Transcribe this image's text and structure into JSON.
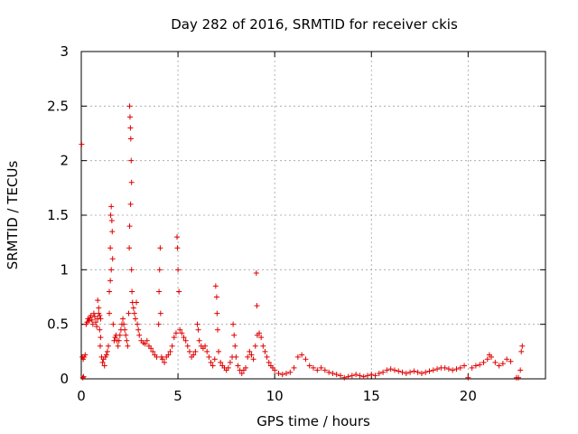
{
  "chart_data": {
    "type": "scatter",
    "title": "Day 282 of 2016, SRMTID for receiver ckis",
    "xlabel": "GPS time / hours",
    "ylabel": "SRMTID / TECUs",
    "xlim": [
      0,
      24
    ],
    "ylim": [
      0,
      3
    ],
    "x_ticks": [
      0,
      5,
      10,
      15,
      20
    ],
    "x_tick_labels": [
      "0",
      "5",
      "10",
      "15",
      "20"
    ],
    "y_ticks": [
      0,
      0.5,
      1,
      1.5,
      2,
      2.5,
      3
    ],
    "y_tick_labels": [
      "0",
      "0.5",
      "1",
      "1.5",
      "2",
      "2.5",
      "3"
    ],
    "grid": true,
    "marker": "plus",
    "color": "#e00000",
    "series": [
      {
        "name": "SRMTID",
        "points": [
          [
            0.02,
            2.15
          ],
          [
            0.05,
            0.2
          ],
          [
            0.1,
            0.18
          ],
          [
            0.15,
            0.2
          ],
          [
            0.2,
            0.22
          ],
          [
            0.08,
            0.01
          ],
          [
            0.12,
            0.02
          ],
          [
            0.25,
            0.5
          ],
          [
            0.3,
            0.52
          ],
          [
            0.35,
            0.55
          ],
          [
            0.4,
            0.53
          ],
          [
            0.45,
            0.56
          ],
          [
            0.5,
            0.58
          ],
          [
            0.55,
            0.54
          ],
          [
            0.6,
            0.5
          ],
          [
            0.65,
            0.6
          ],
          [
            0.7,
            0.57
          ],
          [
            0.75,
            0.52
          ],
          [
            0.8,
            0.48
          ],
          [
            0.85,
            0.55
          ],
          [
            0.9,
            0.6
          ],
          [
            0.95,
            0.58
          ],
          [
            1.0,
            0.55
          ],
          [
            0.85,
            0.72
          ],
          [
            0.9,
            0.65
          ],
          [
            0.95,
            0.45
          ],
          [
            1.0,
            0.38
          ],
          [
            0.98,
            0.3
          ],
          [
            1.05,
            0.2
          ],
          [
            1.1,
            0.15
          ],
          [
            1.15,
            0.18
          ],
          [
            1.2,
            0.12
          ],
          [
            1.25,
            0.2
          ],
          [
            1.3,
            0.22
          ],
          [
            1.35,
            0.25
          ],
          [
            1.4,
            0.3
          ],
          [
            1.45,
            0.8
          ],
          [
            1.5,
            1.2
          ],
          [
            1.52,
            1.5
          ],
          [
            1.55,
            1.58
          ],
          [
            1.58,
            1.45
          ],
          [
            1.6,
            1.35
          ],
          [
            1.62,
            1.1
          ],
          [
            1.55,
            1.0
          ],
          [
            1.5,
            0.9
          ],
          [
            1.45,
            0.6
          ],
          [
            1.65,
            0.5
          ],
          [
            1.7,
            0.35
          ],
          [
            1.75,
            0.38
          ],
          [
            1.8,
            0.4
          ],
          [
            1.85,
            0.35
          ],
          [
            1.9,
            0.3
          ],
          [
            1.95,
            0.35
          ],
          [
            2.0,
            0.4
          ],
          [
            2.05,
            0.45
          ],
          [
            2.1,
            0.5
          ],
          [
            2.15,
            0.55
          ],
          [
            2.2,
            0.5
          ],
          [
            2.25,
            0.45
          ],
          [
            2.3,
            0.4
          ],
          [
            2.35,
            0.35
          ],
          [
            2.4,
            0.3
          ],
          [
            2.45,
            0.6
          ],
          [
            2.5,
            2.5
          ],
          [
            2.52,
            2.4
          ],
          [
            2.54,
            2.3
          ],
          [
            2.56,
            2.2
          ],
          [
            2.58,
            2.0
          ],
          [
            2.6,
            1.8
          ],
          [
            2.55,
            1.6
          ],
          [
            2.5,
            1.4
          ],
          [
            2.48,
            1.2
          ],
          [
            2.6,
            1.0
          ],
          [
            2.62,
            0.8
          ],
          [
            2.65,
            0.7
          ],
          [
            2.7,
            0.65
          ],
          [
            2.75,
            0.6
          ],
          [
            2.8,
            0.55
          ],
          [
            2.85,
            0.7
          ],
          [
            2.9,
            0.5
          ],
          [
            2.95,
            0.45
          ],
          [
            3.0,
            0.4
          ],
          [
            3.1,
            0.35
          ],
          [
            3.2,
            0.33
          ],
          [
            3.3,
            0.32
          ],
          [
            3.4,
            0.35
          ],
          [
            3.5,
            0.3
          ],
          [
            3.6,
            0.28
          ],
          [
            3.7,
            0.25
          ],
          [
            3.8,
            0.22
          ],
          [
            3.9,
            0.2
          ],
          [
            4.0,
            0.5
          ],
          [
            4.02,
            0.8
          ],
          [
            4.05,
            1.0
          ],
          [
            4.08,
            1.2
          ],
          [
            4.1,
            0.6
          ],
          [
            4.15,
            0.2
          ],
          [
            4.2,
            0.18
          ],
          [
            4.3,
            0.15
          ],
          [
            4.4,
            0.2
          ],
          [
            4.5,
            0.22
          ],
          [
            4.6,
            0.25
          ],
          [
            4.7,
            0.3
          ],
          [
            4.8,
            0.38
          ],
          [
            4.9,
            0.42
          ],
          [
            4.95,
            1.3
          ],
          [
            4.97,
            1.2
          ],
          [
            5.0,
            1.0
          ],
          [
            5.05,
            0.8
          ],
          [
            5.1,
            0.45
          ],
          [
            5.2,
            0.42
          ],
          [
            5.3,
            0.38
          ],
          [
            5.4,
            0.35
          ],
          [
            5.5,
            0.3
          ],
          [
            5.6,
            0.25
          ],
          [
            5.7,
            0.2
          ],
          [
            5.8,
            0.22
          ],
          [
            5.9,
            0.25
          ],
          [
            6.0,
            0.5
          ],
          [
            6.05,
            0.45
          ],
          [
            6.1,
            0.35
          ],
          [
            6.2,
            0.3
          ],
          [
            6.3,
            0.28
          ],
          [
            6.4,
            0.3
          ],
          [
            6.5,
            0.25
          ],
          [
            6.6,
            0.2
          ],
          [
            6.7,
            0.15
          ],
          [
            6.8,
            0.12
          ],
          [
            6.9,
            0.18
          ],
          [
            6.95,
            0.85
          ],
          [
            7.0,
            0.75
          ],
          [
            7.02,
            0.6
          ],
          [
            7.05,
            0.45
          ],
          [
            7.1,
            0.25
          ],
          [
            7.2,
            0.15
          ],
          [
            7.3,
            0.12
          ],
          [
            7.4,
            0.1
          ],
          [
            7.5,
            0.08
          ],
          [
            7.6,
            0.1
          ],
          [
            7.7,
            0.15
          ],
          [
            7.8,
            0.2
          ],
          [
            7.85,
            0.5
          ],
          [
            7.9,
            0.4
          ],
          [
            7.95,
            0.3
          ],
          [
            8.0,
            0.2
          ],
          [
            8.1,
            0.12
          ],
          [
            8.2,
            0.08
          ],
          [
            8.3,
            0.05
          ],
          [
            8.4,
            0.08
          ],
          [
            8.5,
            0.1
          ],
          [
            8.6,
            0.2
          ],
          [
            8.7,
            0.25
          ],
          [
            8.8,
            0.22
          ],
          [
            8.9,
            0.18
          ],
          [
            9.0,
            0.3
          ],
          [
            9.05,
            0.97
          ],
          [
            9.08,
            0.67
          ],
          [
            9.1,
            0.4
          ],
          [
            9.2,
            0.42
          ],
          [
            9.3,
            0.38
          ],
          [
            9.4,
            0.3
          ],
          [
            9.5,
            0.25
          ],
          [
            9.6,
            0.2
          ],
          [
            9.7,
            0.15
          ],
          [
            9.8,
            0.12
          ],
          [
            9.9,
            0.1
          ],
          [
            10.0,
            0.08
          ],
          [
            10.2,
            0.05
          ],
          [
            10.4,
            0.04
          ],
          [
            10.6,
            0.05
          ],
          [
            10.8,
            0.06
          ],
          [
            11.0,
            0.1
          ],
          [
            11.2,
            0.2
          ],
          [
            11.4,
            0.22
          ],
          [
            11.6,
            0.18
          ],
          [
            11.8,
            0.12
          ],
          [
            12.0,
            0.1
          ],
          [
            12.2,
            0.08
          ],
          [
            12.4,
            0.1
          ],
          [
            12.6,
            0.08
          ],
          [
            12.8,
            0.06
          ],
          [
            13.0,
            0.05
          ],
          [
            13.2,
            0.04
          ],
          [
            13.4,
            0.03
          ],
          [
            13.6,
            0.01
          ],
          [
            13.8,
            0.02
          ],
          [
            14.0,
            0.03
          ],
          [
            14.2,
            0.04
          ],
          [
            14.4,
            0.03
          ],
          [
            14.6,
            0.02
          ],
          [
            14.8,
            0.03
          ],
          [
            15.0,
            0.04
          ],
          [
            15.2,
            0.03
          ],
          [
            15.4,
            0.05
          ],
          [
            15.6,
            0.06
          ],
          [
            15.8,
            0.08
          ],
          [
            16.0,
            0.09
          ],
          [
            16.2,
            0.08
          ],
          [
            16.4,
            0.07
          ],
          [
            16.6,
            0.06
          ],
          [
            16.8,
            0.05
          ],
          [
            17.0,
            0.06
          ],
          [
            17.2,
            0.07
          ],
          [
            17.4,
            0.06
          ],
          [
            17.6,
            0.05
          ],
          [
            17.8,
            0.06
          ],
          [
            18.0,
            0.07
          ],
          [
            18.2,
            0.08
          ],
          [
            18.4,
            0.09
          ],
          [
            18.6,
            0.1
          ],
          [
            18.8,
            0.1
          ],
          [
            19.0,
            0.09
          ],
          [
            19.2,
            0.08
          ],
          [
            19.4,
            0.09
          ],
          [
            19.6,
            0.1
          ],
          [
            19.8,
            0.12
          ],
          [
            20.0,
            0.01
          ],
          [
            20.2,
            0.1
          ],
          [
            20.4,
            0.12
          ],
          [
            20.6,
            0.13
          ],
          [
            20.8,
            0.15
          ],
          [
            21.0,
            0.18
          ],
          [
            21.1,
            0.22
          ],
          [
            21.2,
            0.2
          ],
          [
            21.4,
            0.15
          ],
          [
            21.6,
            0.12
          ],
          [
            21.8,
            0.14
          ],
          [
            22.0,
            0.18
          ],
          [
            22.2,
            0.16
          ],
          [
            22.5,
            0.01
          ],
          [
            22.6,
            0.01
          ],
          [
            22.7,
            0.08
          ],
          [
            22.75,
            0.25
          ],
          [
            22.8,
            0.3
          ]
        ]
      }
    ]
  }
}
